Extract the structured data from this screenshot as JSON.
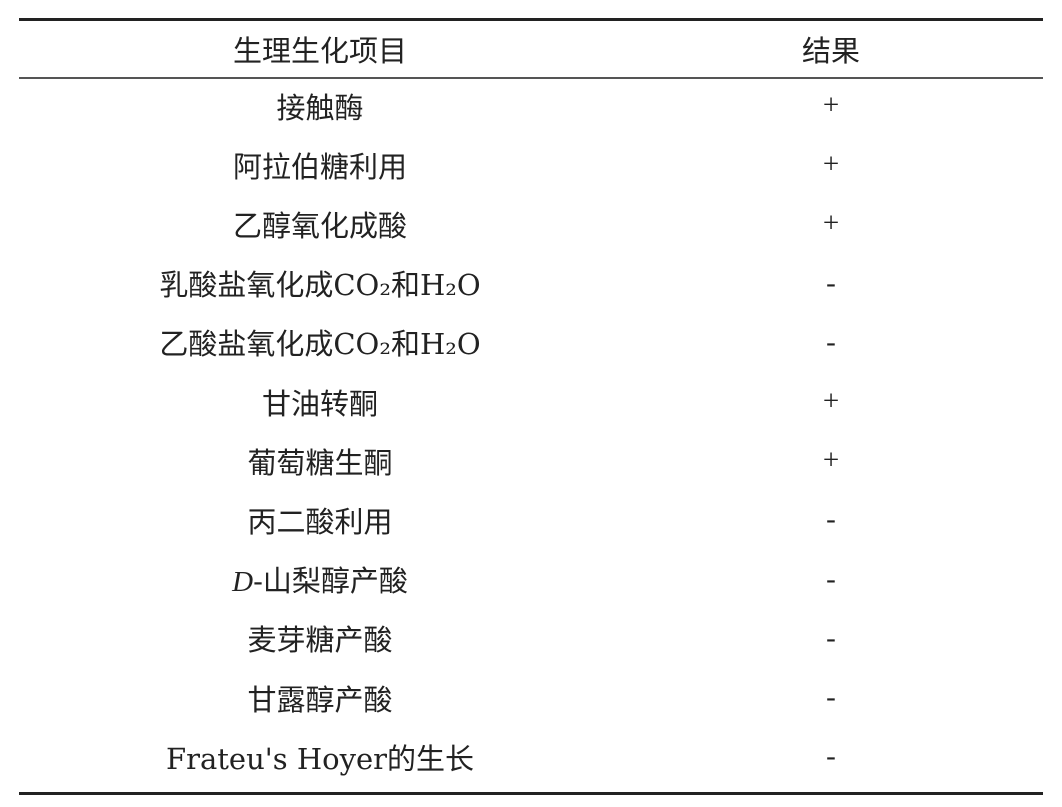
{
  "table": {
    "headers": [
      "生理生化项目",
      "结果"
    ],
    "rows": [
      {
        "prefix": "",
        "item": "接触酶",
        "result": "+"
      },
      {
        "prefix": "",
        "item": "阿拉伯糖利用",
        "result": "+"
      },
      {
        "prefix": "",
        "item": "乙醇氧化成酸",
        "result": "+"
      },
      {
        "prefix": "",
        "item": "乳酸盐氧化成CO₂和H₂O",
        "result": "-"
      },
      {
        "prefix": "",
        "item": "乙酸盐氧化成CO₂和H₂O",
        "result": "-"
      },
      {
        "prefix": "",
        "item": "甘油转酮",
        "result": "+"
      },
      {
        "prefix": "",
        "item": "葡萄糖生酮",
        "result": "+"
      },
      {
        "prefix": "",
        "item": "丙二酸利用",
        "result": "-"
      },
      {
        "prefix": "D",
        "item": "-山梨醇产酸",
        "result": "-"
      },
      {
        "prefix": "",
        "item": "麦芽糖产酸",
        "result": "-"
      },
      {
        "prefix": "",
        "item": "甘露醇产酸",
        "result": "-"
      },
      {
        "prefix": "",
        "item": "Frateu's Hoyer的生长",
        "result": "-"
      }
    ]
  }
}
